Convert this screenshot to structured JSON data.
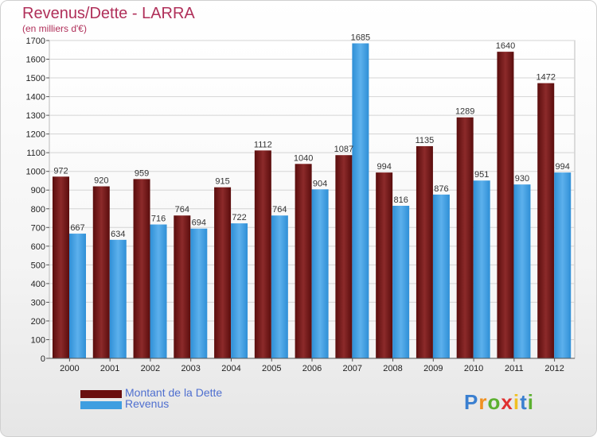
{
  "header": {
    "title": "Revenus/Dette - LARRA",
    "subtitle": "(en milliers d'€)"
  },
  "chart_data": {
    "type": "bar",
    "categories": [
      "2000",
      "2001",
      "2002",
      "2003",
      "2004",
      "2005",
      "2006",
      "2007",
      "2008",
      "2009",
      "2010",
      "2011",
      "2012"
    ],
    "series": [
      {
        "name": "Montant de la Dette",
        "color": "#7a1f1f",
        "values": [
          972,
          920,
          959,
          764,
          915,
          1112,
          1040,
          1087,
          994,
          1135,
          1289,
          1640,
          1472
        ]
      },
      {
        "name": "Revenus",
        "color": "#3f9ee0",
        "values": [
          667,
          634,
          716,
          694,
          722,
          764,
          904,
          1685,
          816,
          876,
          951,
          930,
          994
        ]
      }
    ],
    "ylim": [
      0,
      1700
    ],
    "yticks": [
      0,
      100,
      200,
      300,
      400,
      500,
      600,
      700,
      800,
      900,
      1000,
      1100,
      1200,
      1300,
      1400,
      1500,
      1600,
      1700
    ],
    "grid": true,
    "legend_position": "bottom-left"
  },
  "legend": {
    "items": [
      {
        "label": "Montant de la Dette",
        "color": "#6a0f0f"
      },
      {
        "label": "Revenus",
        "color": "#3f9ee0"
      }
    ]
  },
  "logo": {
    "letters": [
      "P",
      "r",
      "o",
      "x",
      "i",
      "t",
      "i"
    ],
    "colors": [
      "#3a7fd0",
      "#f09020",
      "#5cb030",
      "#e03030",
      "#f0c020",
      "#3a7fd0",
      "#5cb030"
    ]
  }
}
